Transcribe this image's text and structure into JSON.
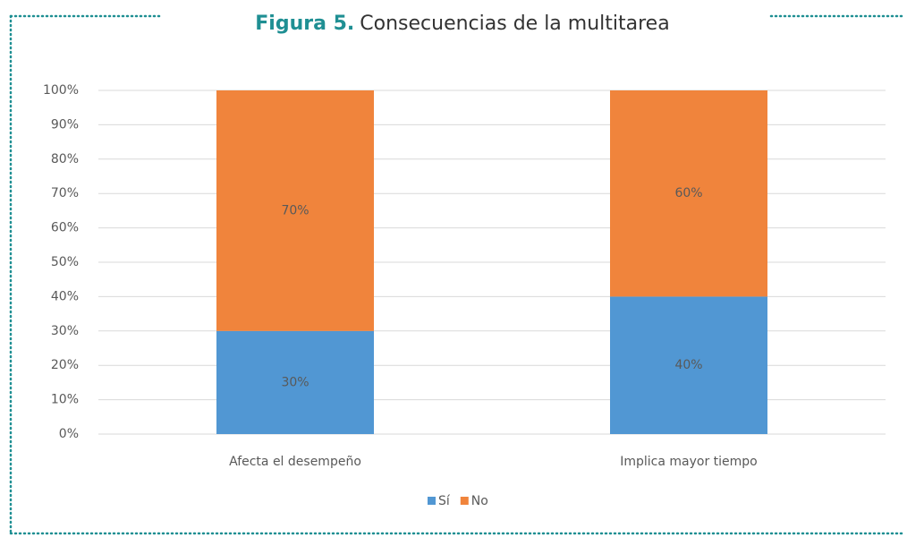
{
  "chart_data": {
    "type": "stacked_bar",
    "figure_label": "Figura 5.",
    "title": "Consecuencias de la multitarea",
    "categories": [
      "Afecta el desempeño",
      "Implica mayor tiempo"
    ],
    "series": [
      {
        "name": "Sí",
        "color": "#5197d3",
        "values": [
          30,
          40
        ],
        "value_labels": [
          "30%",
          "40%"
        ]
      },
      {
        "name": "No",
        "color": "#f0843c",
        "values": [
          70,
          60
        ],
        "value_labels": [
          "70%",
          "60%"
        ]
      }
    ],
    "ylim": [
      0,
      100
    ],
    "yticks": [
      {
        "value": 0,
        "label": "0%"
      },
      {
        "value": 10,
        "label": "10%"
      },
      {
        "value": 20,
        "label": "20%"
      },
      {
        "value": 30,
        "label": "30%"
      },
      {
        "value": 40,
        "label": "40%"
      },
      {
        "value": 50,
        "label": "50%"
      },
      {
        "value": 60,
        "label": "60%"
      },
      {
        "value": 70,
        "label": "70%"
      },
      {
        "value": 80,
        "label": "80%"
      },
      {
        "value": 90,
        "label": "90%"
      },
      {
        "value": 100,
        "label": "100%"
      }
    ],
    "grid": true,
    "legend": "bottom"
  }
}
